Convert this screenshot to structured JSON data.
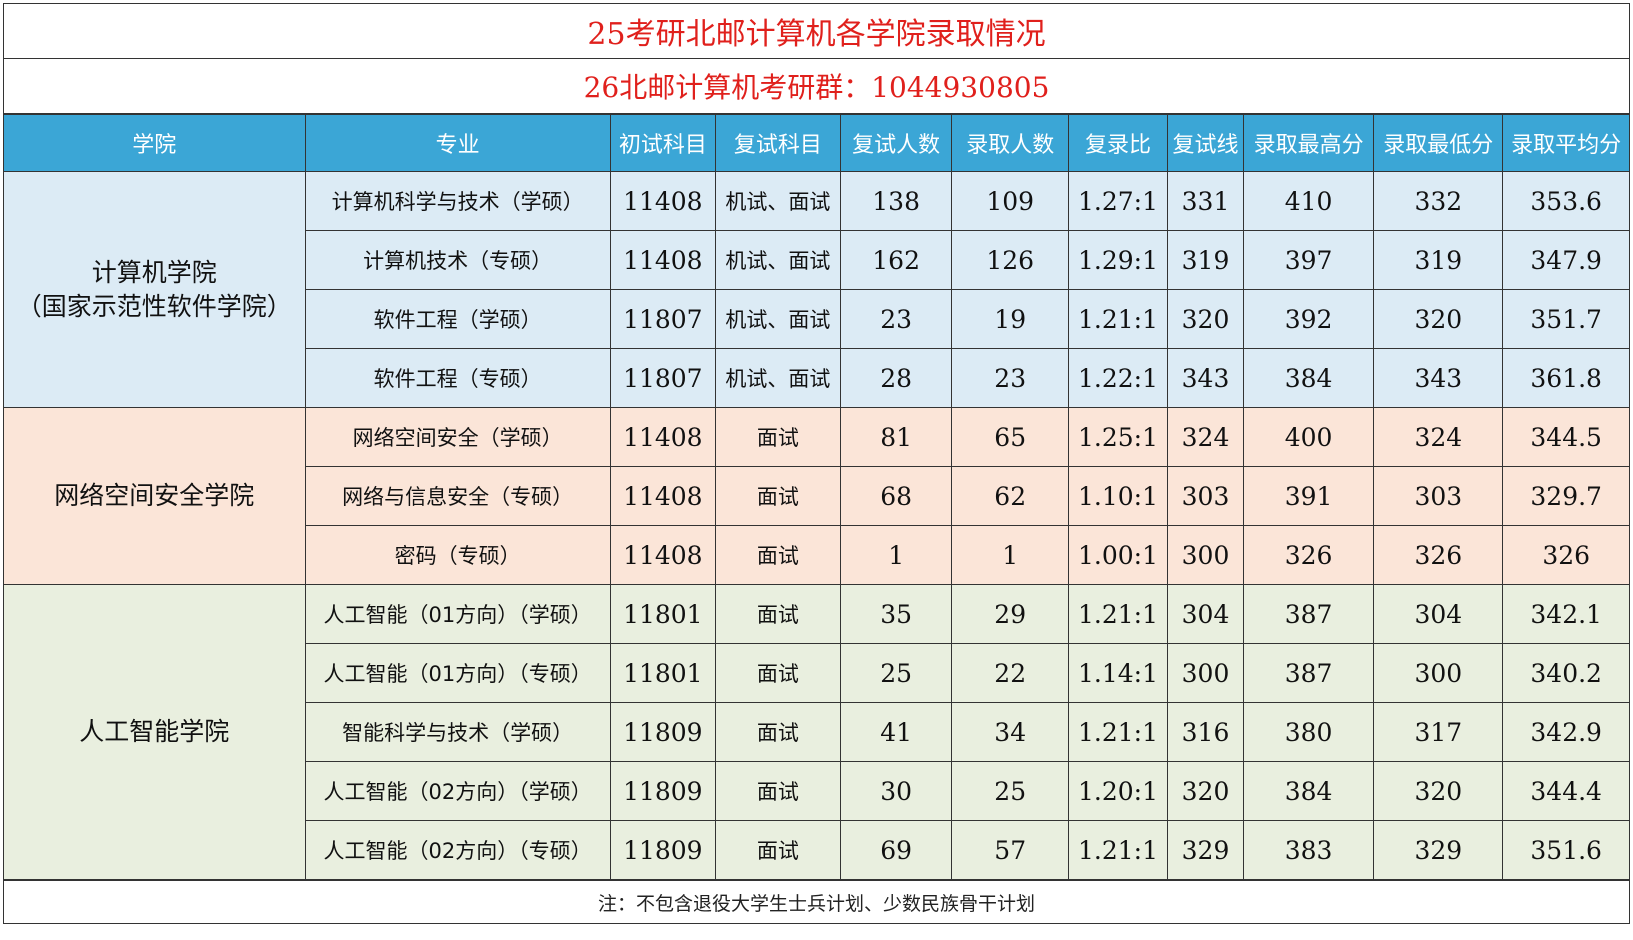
{
  "title": "25考研北邮计算机各学院录取情况",
  "group_info": "26北邮计算机考研群：1044930805",
  "columns": [
    "学院",
    "专业",
    "初试科目",
    "复试科目",
    "复试人数",
    "录取人数",
    "复录比",
    "复试线",
    "录取最高分",
    "录取最低分",
    "录取平均分"
  ],
  "colors": {
    "header": "#3ba6d6",
    "group_blue": "#dcebf5",
    "group_peach": "#fbe5d8",
    "group_green": "#e9efdf",
    "title_red": "#e0201c"
  },
  "colleges": [
    {
      "name_line1": "计算机学院",
      "name_line2": "（国家示范性软件学院）",
      "rows": [
        {
          "major": "计算机科学与技术（学硕）",
          "exam": "11408",
          "retest": "机试、面试",
          "retest_count": "138",
          "admit_count": "109",
          "ratio": "1.27:1",
          "line": "331",
          "max": "410",
          "min": "332",
          "avg": "353.6"
        },
        {
          "major": "计算机技术（专硕）",
          "exam": "11408",
          "retest": "机试、面试",
          "retest_count": "162",
          "admit_count": "126",
          "ratio": "1.29:1",
          "line": "319",
          "max": "397",
          "min": "319",
          "avg": "347.9"
        },
        {
          "major": "软件工程（学硕）",
          "exam": "11807",
          "retest": "机试、面试",
          "retest_count": "23",
          "admit_count": "19",
          "ratio": "1.21:1",
          "line": "320",
          "max": "392",
          "min": "320",
          "avg": "351.7"
        },
        {
          "major": "软件工程（专硕）",
          "exam": "11807",
          "retest": "机试、面试",
          "retest_count": "28",
          "admit_count": "23",
          "ratio": "1.22:1",
          "line": "343",
          "max": "384",
          "min": "343",
          "avg": "361.8"
        }
      ]
    },
    {
      "name_line1": "网络空间安全学院",
      "name_line2": "",
      "rows": [
        {
          "major": "网络空间安全（学硕）",
          "exam": "11408",
          "retest": "面试",
          "retest_count": "81",
          "admit_count": "65",
          "ratio": "1.25:1",
          "line": "324",
          "max": "400",
          "min": "324",
          "avg": "344.5"
        },
        {
          "major": "网络与信息安全（专硕）",
          "exam": "11408",
          "retest": "面试",
          "retest_count": "68",
          "admit_count": "62",
          "ratio": "1.10:1",
          "line": "303",
          "max": "391",
          "min": "303",
          "avg": "329.7"
        },
        {
          "major": "密码（专硕）",
          "exam": "11408",
          "retest": "面试",
          "retest_count": "1",
          "admit_count": "1",
          "ratio": "1.00:1",
          "line": "300",
          "max": "326",
          "min": "326",
          "avg": "326"
        }
      ]
    },
    {
      "name_line1": "人工智能学院",
      "name_line2": "",
      "rows": [
        {
          "major": "人工智能（01方向）（学硕）",
          "exam": "11801",
          "retest": "面试",
          "retest_count": "35",
          "admit_count": "29",
          "ratio": "1.21:1",
          "line": "304",
          "max": "387",
          "min": "304",
          "avg": "342.1"
        },
        {
          "major": "人工智能（01方向）（专硕）",
          "exam": "11801",
          "retest": "面试",
          "retest_count": "25",
          "admit_count": "22",
          "ratio": "1.14:1",
          "line": "300",
          "max": "387",
          "min": "300",
          "avg": "340.2"
        },
        {
          "major": "智能科学与技术（学硕）",
          "exam": "11809",
          "retest": "面试",
          "retest_count": "41",
          "admit_count": "34",
          "ratio": "1.21:1",
          "line": "316",
          "max": "380",
          "min": "317",
          "avg": "342.9"
        },
        {
          "major": "人工智能（02方向）（学硕）",
          "exam": "11809",
          "retest": "面试",
          "retest_count": "30",
          "admit_count": "25",
          "ratio": "1.20:1",
          "line": "320",
          "max": "384",
          "min": "320",
          "avg": "344.4"
        },
        {
          "major": "人工智能（02方向）（专硕）",
          "exam": "11809",
          "retest": "面试",
          "retest_count": "69",
          "admit_count": "57",
          "ratio": "1.21:1",
          "line": "329",
          "max": "383",
          "min": "329",
          "avg": "351.6"
        }
      ]
    }
  ],
  "note": "注：不包含退役大学生士兵计划、少数民族骨干计划"
}
